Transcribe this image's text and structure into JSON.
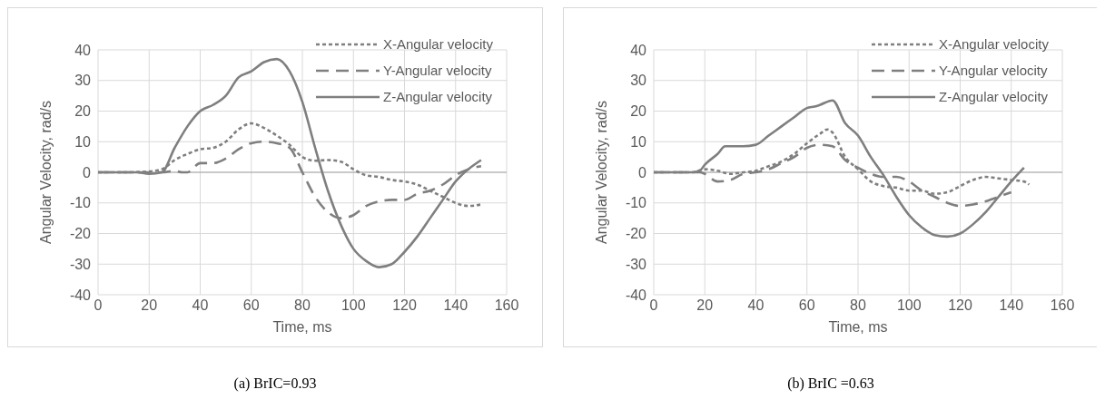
{
  "chart_data": [
    {
      "type": "line",
      "xlabel": "Time, ms",
      "ylabel": "Angular Velocity, rad/s",
      "xlim": [
        0,
        160
      ],
      "xticks": [
        0,
        20,
        40,
        60,
        80,
        100,
        120,
        140,
        160
      ],
      "ylim": [
        -40,
        40
      ],
      "yticks": [
        -40,
        -30,
        -20,
        -10,
        0,
        10,
        20,
        30,
        40
      ],
      "grid": true,
      "legend": "top right",
      "annotations": [
        "(a)   BrIC=0.93"
      ],
      "series": [
        {
          "name": "X-Angular velocity",
          "color": "#7f7f7f",
          "line_style": "dotted",
          "x": [
            0,
            10,
            20,
            25,
            30,
            35,
            40,
            45,
            50,
            55,
            60,
            65,
            70,
            75,
            80,
            85,
            90,
            95,
            100,
            105,
            110,
            115,
            120,
            125,
            130,
            135,
            140,
            145,
            150
          ],
          "values": [
            0,
            0,
            0.3,
            1,
            4,
            6,
            7.5,
            8,
            10,
            14,
            16,
            14.5,
            12,
            9,
            5,
            3.8,
            4,
            3.5,
            1,
            -1,
            -1.5,
            -2.5,
            -3,
            -4,
            -6,
            -8,
            -10,
            -11,
            -10.5
          ]
        },
        {
          "name": "Y-Angular velocity",
          "color": "#7f7f7f",
          "line_style": "dashed",
          "x": [
            0,
            20,
            25,
            30,
            33,
            35,
            40,
            45,
            50,
            55,
            60,
            65,
            70,
            75,
            80,
            85,
            90,
            95,
            100,
            105,
            110,
            115,
            120,
            125,
            130,
            135,
            140,
            145,
            150
          ],
          "values": [
            0,
            0,
            0,
            0.5,
            0,
            0,
            3,
            3,
            4.5,
            7.5,
            9.5,
            10,
            9.5,
            8,
            0,
            -8,
            -13,
            -15,
            -14,
            -11,
            -9.5,
            -9,
            -9,
            -7,
            -6,
            -4,
            -1,
            1,
            2
          ]
        },
        {
          "name": "Z-Angular velocity",
          "color": "#7f7f7f",
          "line_style": "solid",
          "x": [
            0,
            15,
            20,
            25,
            30,
            35,
            40,
            45,
            50,
            55,
            60,
            65,
            70,
            75,
            80,
            85,
            90,
            95,
            100,
            105,
            110,
            115,
            120,
            125,
            130,
            135,
            140,
            145,
            150
          ],
          "values": [
            0,
            0,
            -0.5,
            0,
            8,
            15,
            20,
            22,
            25,
            31,
            33,
            36,
            37,
            33,
            23,
            8,
            -6,
            -17,
            -25,
            -29,
            -31,
            -30,
            -26,
            -21,
            -15,
            -9,
            -3,
            1,
            4
          ]
        }
      ]
    },
    {
      "type": "line",
      "xlabel": "Time, ms",
      "ylabel": "Angular Velocity, rad/s",
      "xlim": [
        0,
        160
      ],
      "xticks": [
        0,
        20,
        40,
        60,
        80,
        100,
        120,
        140,
        160
      ],
      "ylim": [
        -40,
        40
      ],
      "yticks": [
        -40,
        -30,
        -20,
        -10,
        0,
        10,
        20,
        30,
        40
      ],
      "grid": true,
      "legend": "top right",
      "annotations": [
        "(b)   BrIC =0.63"
      ],
      "series": [
        {
          "name": "X-Angular velocity",
          "color": "#7f7f7f",
          "line_style": "dotted",
          "x": [
            0,
            15,
            20,
            25,
            30,
            35,
            40,
            45,
            50,
            55,
            60,
            65,
            68,
            70,
            75,
            80,
            85,
            90,
            95,
            100,
            105,
            110,
            115,
            120,
            125,
            130,
            135,
            140,
            145,
            147
          ],
          "values": [
            0,
            0,
            1,
            0.5,
            -0.5,
            0,
            0.5,
            2,
            3.5,
            6,
            9.5,
            12.5,
            14,
            13,
            5,
            1,
            -3,
            -4.5,
            -5,
            -6,
            -6,
            -7,
            -6.5,
            -4.5,
            -2.5,
            -1.5,
            -2,
            -2.5,
            -3,
            -4
          ]
        },
        {
          "name": "Y-Angular velocity",
          "color": "#7f7f7f",
          "line_style": "dashed",
          "x": [
            0,
            15,
            18,
            20,
            25,
            30,
            35,
            40,
            45,
            50,
            55,
            60,
            65,
            70,
            75,
            80,
            85,
            90,
            95,
            100,
            105,
            110,
            115,
            120,
            125,
            130,
            135,
            140
          ],
          "values": [
            0,
            0,
            0,
            -0.5,
            -3,
            -2.5,
            -0.5,
            0,
            1,
            3,
            5,
            8,
            9,
            8.5,
            4,
            1.5,
            -0.5,
            -1.5,
            -1.5,
            -3,
            -6,
            -8,
            -10,
            -11,
            -10.5,
            -9.5,
            -8,
            -6.5
          ]
        },
        {
          "name": "Z-Angular velocity",
          "color": "#7f7f7f",
          "line_style": "solid",
          "x": [
            0,
            15,
            18,
            20,
            25,
            28,
            35,
            40,
            45,
            50,
            55,
            60,
            63,
            65,
            70,
            75,
            80,
            85,
            90,
            95,
            100,
            105,
            110,
            115,
            120,
            125,
            130,
            135,
            140,
            145
          ],
          "values": [
            0,
            0,
            0.5,
            2.5,
            6,
            8.5,
            8.5,
            9,
            12,
            15,
            18,
            21,
            21.5,
            22,
            23.5,
            16,
            12,
            5,
            -1,
            -8,
            -14,
            -18,
            -20.5,
            -21,
            -20,
            -17,
            -13,
            -8,
            -3,
            1.5
          ]
        }
      ]
    }
  ]
}
